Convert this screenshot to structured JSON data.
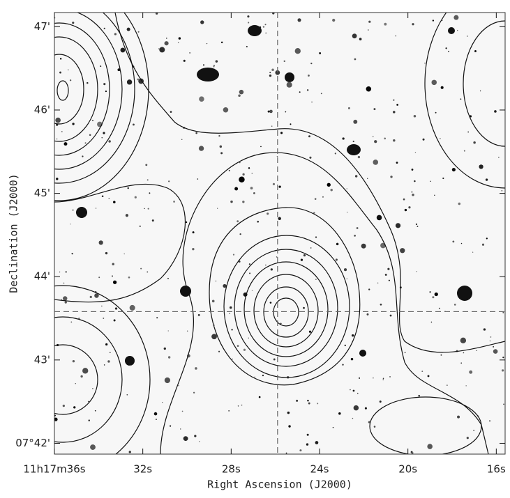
{
  "chart_data": {
    "type": "image",
    "xlabel": "Right Ascension (J2000)",
    "ylabel": "Declination (J2000)",
    "xlim": [
      36.0,
      15.6
    ],
    "ylim": [
      41.87,
      47.17
    ],
    "xticks": [
      {
        "value": 36,
        "label": "11h17m36s"
      },
      {
        "value": 32,
        "label": "32s"
      },
      {
        "value": 28,
        "label": "28s"
      },
      {
        "value": 24,
        "label": "24s"
      },
      {
        "value": 20,
        "label": "20s"
      },
      {
        "value": 16,
        "label": "16s"
      }
    ],
    "yticks": [
      {
        "value": 42,
        "label": "07°42'"
      },
      {
        "value": 43,
        "label": "43'"
      },
      {
        "value": 44,
        "label": "44'"
      },
      {
        "value": 45,
        "label": "45'"
      },
      {
        "value": 46,
        "label": "46'"
      },
      {
        "value": 47,
        "label": "47'"
      }
    ],
    "crosshair": {
      "x": 25.9,
      "y": 43.58
    }
  }
}
